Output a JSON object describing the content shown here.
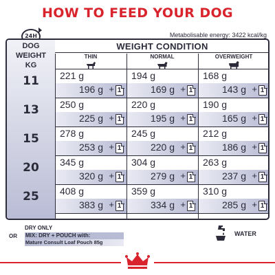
{
  "header": {
    "title": "HOW TO FEED YOUR DOG",
    "clock_text": "24H",
    "energy_label": "Metabolisable energy:",
    "energy_value": "3422 kcal/kg"
  },
  "table": {
    "weight_header": [
      "DOG",
      "WEIGHT",
      "KG"
    ],
    "condition_title": "WEIGHT CONDITION",
    "columns": [
      {
        "label": "THIN",
        "icon": "thin-dog-icon"
      },
      {
        "label": "NORMAL",
        "icon": "normal-dog-icon"
      },
      {
        "label": "OVERWEIGHT",
        "icon": "overweight-dog-icon"
      }
    ],
    "pouch_count": "1",
    "plus": "+",
    "rows": [
      {
        "weight": "11",
        "cells": [
          {
            "dry": "221 g",
            "mix": "196 g"
          },
          {
            "dry": "194 g",
            "mix": "169 g"
          },
          {
            "dry": "168 g",
            "mix": "143 g"
          }
        ]
      },
      {
        "weight": "13",
        "cells": [
          {
            "dry": "250 g",
            "mix": "225 g"
          },
          {
            "dry": "220 g",
            "mix": "195 g"
          },
          {
            "dry": "190 g",
            "mix": "165 g"
          }
        ]
      },
      {
        "weight": "15",
        "cells": [
          {
            "dry": "278 g",
            "mix": "253 g"
          },
          {
            "dry": "245 g",
            "mix": "220 g"
          },
          {
            "dry": "212 g",
            "mix": "186 g"
          }
        ]
      },
      {
        "weight": "20",
        "cells": [
          {
            "dry": "345 g",
            "mix": "320 g"
          },
          {
            "dry": "304 g",
            "mix": "279 g"
          },
          {
            "dry": "263 g",
            "mix": "237 g"
          }
        ]
      },
      {
        "weight": "25",
        "cells": [
          {
            "dry": "408 g",
            "mix": "383 g"
          },
          {
            "dry": "359 g",
            "mix": "334 g"
          },
          {
            "dry": "310 g",
            "mix": "285 g"
          }
        ]
      }
    ]
  },
  "legend": {
    "dry_only": "DRY ONLY",
    "or": "OR",
    "mix_line1": "MIX: DRY + POUCH with:",
    "mix_line2": "Mature Consult Loaf Pouch 85g",
    "water_label": "WATER",
    "water_icon": "water-tap-bowl-icon"
  },
  "footer": {
    "logo_icon": "royal-canin-crown-logo"
  },
  "colors": {
    "accent": "#d9232d",
    "band": "#b8bbd4",
    "ink": "#2b2b3a"
  }
}
